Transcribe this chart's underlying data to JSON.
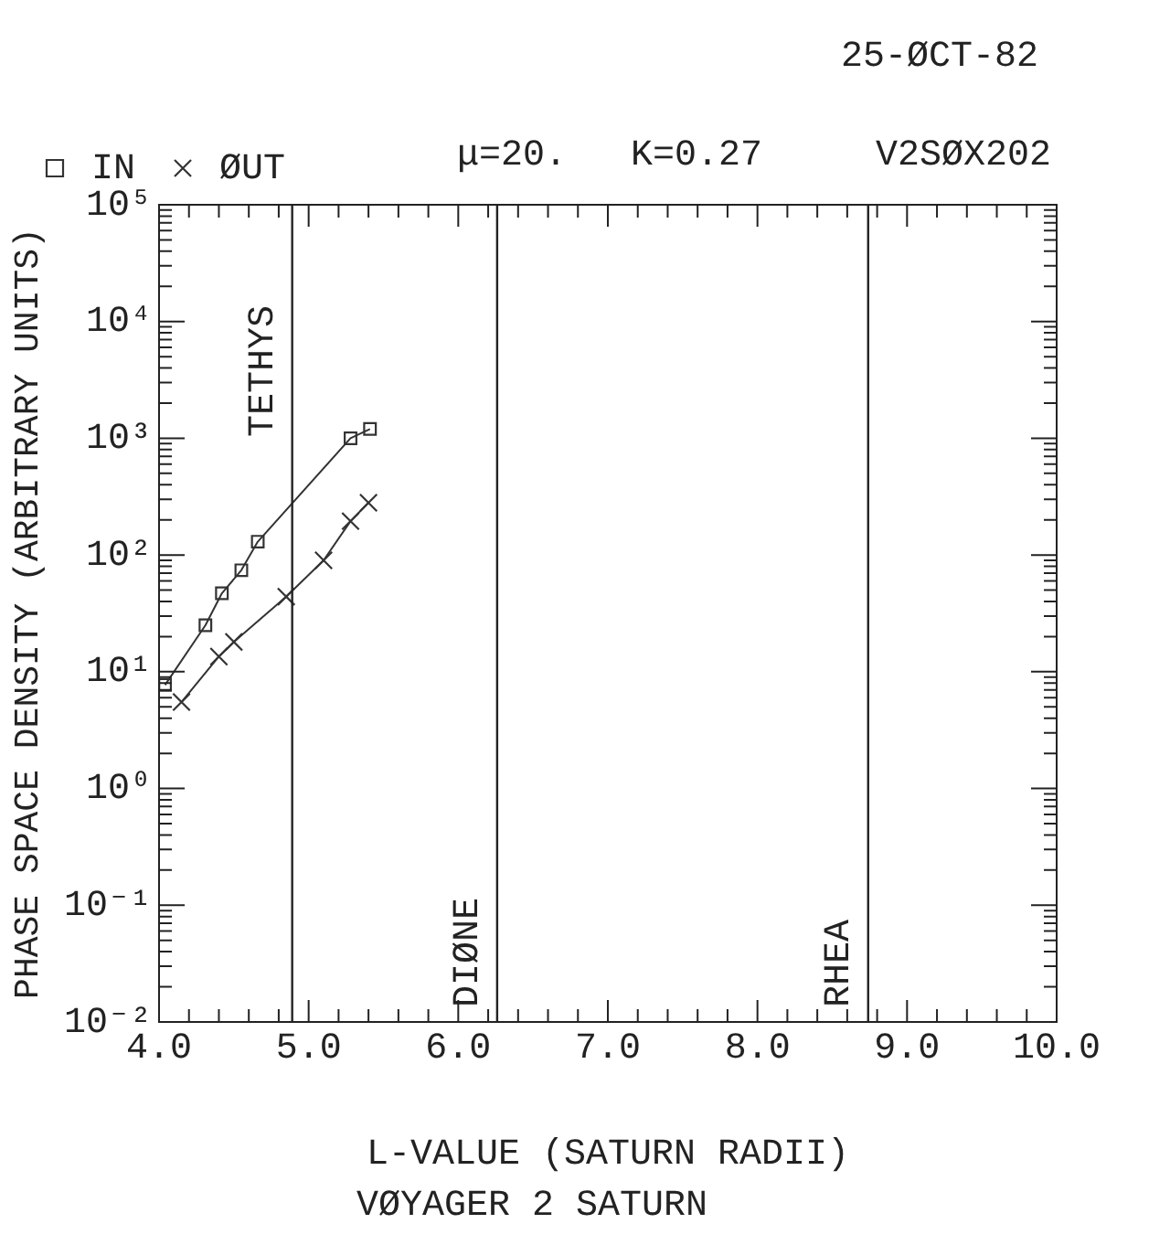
{
  "chart_data": {
    "type": "line",
    "subtitle": "VØYAGER 2 SATURN",
    "xlabel": "L-VALUE (SATURN RADII)",
    "ylabel": "PHASE SPACE DENSITY (ARBITRARY UNITS)",
    "annotations": [
      "25-ØCT-82",
      "μ=20.",
      "K=0.27",
      "V2SØX202"
    ],
    "series": [
      {
        "name": "IN",
        "color": "#333333",
        "marker": "square",
        "x": [
          4.04,
          4.31,
          4.42,
          4.55,
          4.66,
          5.28,
          5.41
        ],
        "values": [
          7.7,
          25,
          47,
          74,
          130,
          1000,
          1200
        ]
      },
      {
        "name": "ØUT",
        "color": "#333333",
        "marker": "cross",
        "x": [
          4.15,
          4.4,
          4.5,
          4.85,
          5.1,
          5.28,
          5.4
        ],
        "values": [
          5.5,
          13.5,
          18,
          44,
          90,
          195,
          280
        ]
      }
    ],
    "log": true,
    "grid": false,
    "legend": "top left",
    "line_style": "solid",
    "xlim": [
      4,
      10
    ],
    "ylim": [
      0.01,
      100000
    ],
    "xticks": [
      {
        "value": 4,
        "label": "4.0"
      },
      {
        "value": 4.2,
        "label": null
      },
      {
        "value": 4.4,
        "label": null
      },
      {
        "value": 4.6,
        "label": null
      },
      {
        "value": 4.8,
        "label": null
      },
      {
        "value": 5,
        "label": "5.0"
      },
      {
        "value": 5.2,
        "label": null
      },
      {
        "value": 5.4,
        "label": null
      },
      {
        "value": 5.6,
        "label": null
      },
      {
        "value": 5.8,
        "label": null
      },
      {
        "value": 6,
        "label": "6.0"
      },
      {
        "value": 6.2,
        "label": null
      },
      {
        "value": 6.4,
        "label": null
      },
      {
        "value": 6.6,
        "label": null
      },
      {
        "value": 6.8,
        "label": null
      },
      {
        "value": 7,
        "label": "7.0"
      },
      {
        "value": 7.2,
        "label": null
      },
      {
        "value": 7.4,
        "label": null
      },
      {
        "value": 7.6,
        "label": null
      },
      {
        "value": 7.8,
        "label": null
      },
      {
        "value": 8,
        "label": "8.0"
      },
      {
        "value": 8.2,
        "label": null
      },
      {
        "value": 8.4,
        "label": null
      },
      {
        "value": 8.6,
        "label": null
      },
      {
        "value": 8.8,
        "label": null
      },
      {
        "value": 9,
        "label": "9.0"
      },
      {
        "value": 9.2,
        "label": null
      },
      {
        "value": 9.4,
        "label": null
      },
      {
        "value": 9.6,
        "label": null
      },
      {
        "value": 9.8,
        "label": null
      },
      {
        "value": 10,
        "label": "10.0"
      }
    ],
    "yticks": [
      {
        "value": 0.01,
        "label": "10⁻²"
      },
      {
        "value": 0.1,
        "label": "10⁻¹"
      },
      {
        "value": 1,
        "label": "10⁰"
      },
      {
        "value": 10,
        "label": "10¹"
      },
      {
        "value": 100,
        "label": "10²"
      },
      {
        "value": 1000,
        "label": "10³"
      },
      {
        "value": 10000,
        "label": "10⁴"
      },
      {
        "value": 100000,
        "label": "10⁵"
      }
    ],
    "ref_lines": [
      {
        "axis": "x",
        "value": 4.89,
        "label": "TETHYS"
      },
      {
        "axis": "x",
        "value": 6.26,
        "label": "DIØNE"
      },
      {
        "axis": "x",
        "value": 8.74,
        "label": "RHEA"
      }
    ]
  }
}
